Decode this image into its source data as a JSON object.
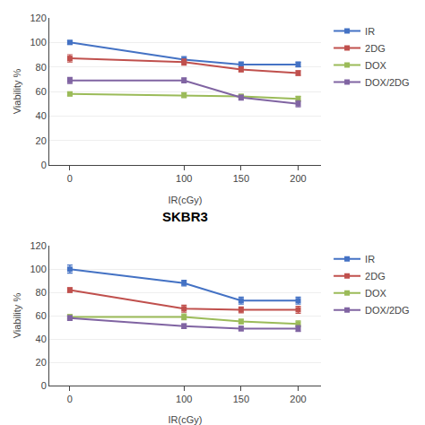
{
  "chart_data": [
    {
      "type": "line",
      "x": [
        0,
        100,
        150,
        200
      ],
      "xlabel": "IR(cGy)",
      "ylabel": "Viability %",
      "xlim": [
        -18,
        220
      ],
      "xticks": [
        0,
        100,
        150,
        200
      ],
      "ylim": [
        0,
        120
      ],
      "yticks": [
        0,
        20,
        40,
        60,
        80,
        100,
        120
      ],
      "grid": true,
      "legend": "right",
      "marker": "square",
      "series": [
        {
          "name": "IR",
          "color": "#4472C4",
          "values": [
            100,
            86,
            82,
            82
          ],
          "yerr": [
            1.5,
            2.5,
            2.0,
            2.0
          ]
        },
        {
          "name": "2DG",
          "color": "#C0504D",
          "values": [
            87,
            84,
            78,
            75
          ],
          "yerr": [
            3.0,
            2.5,
            2.0,
            2.0
          ]
        },
        {
          "name": "DOX",
          "color": "#9BBB59",
          "values": [
            58,
            57,
            56,
            54
          ],
          "yerr": [
            1.5,
            2.0,
            1.5,
            2.0
          ]
        },
        {
          "name": "DOX/2DG",
          "color": "#8064A2",
          "values": [
            69,
            69,
            55,
            50
          ],
          "yerr": [
            2.5,
            2.0,
            2.0,
            2.5
          ]
        }
      ]
    },
    {
      "type": "line",
      "title": "SKBR3",
      "x": [
        0,
        100,
        150,
        200
      ],
      "xlabel": "IR(cGy)",
      "ylabel": "Viability %",
      "xlim": [
        -18,
        220
      ],
      "xticks": [
        0,
        100,
        150,
        200
      ],
      "ylim": [
        0,
        120
      ],
      "yticks": [
        0,
        20,
        40,
        60,
        80,
        100,
        120
      ],
      "grid": true,
      "legend": "right",
      "marker": "square",
      "series": [
        {
          "name": "IR",
          "color": "#4472C4",
          "values": [
            100,
            88,
            73,
            73
          ],
          "yerr": [
            3.5,
            2.5,
            3.0,
            3.0
          ]
        },
        {
          "name": "2DG",
          "color": "#C0504D",
          "values": [
            82,
            66,
            65,
            65
          ],
          "yerr": [
            2.0,
            3.0,
            2.5,
            3.0
          ]
        },
        {
          "name": "DOX",
          "color": "#9BBB59",
          "values": [
            59,
            59,
            55,
            53
          ],
          "yerr": [
            2.0,
            2.5,
            2.0,
            2.5
          ]
        },
        {
          "name": "DOX/2DG",
          "color": "#8064A2",
          "values": [
            58,
            51,
            49,
            49
          ],
          "yerr": [
            2.0,
            2.0,
            2.0,
            2.5
          ]
        }
      ]
    }
  ]
}
